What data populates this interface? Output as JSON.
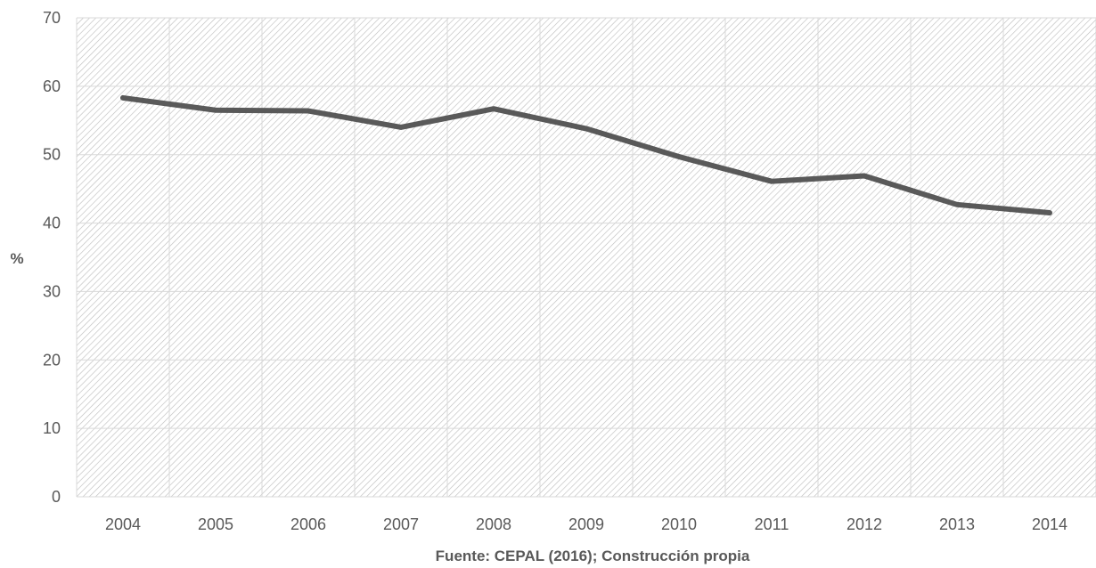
{
  "chart_data": {
    "type": "line",
    "title": "",
    "xlabel": "Fuente: CEPAL (2016); Construcción propia",
    "ylabel": "%",
    "categories": [
      "2004",
      "2005",
      "2006",
      "2007",
      "2008",
      "2009",
      "2010",
      "2011",
      "2012",
      "2013",
      "2014"
    ],
    "series": [
      {
        "values": [
          58.3,
          56.5,
          56.4,
          54.0,
          56.7,
          53.8,
          49.7,
          46.1,
          46.9,
          42.7,
          41.5
        ],
        "color": "#595959"
      }
    ],
    "ylim": [
      0,
      70
    ],
    "yticks": [
      0,
      10,
      20,
      30,
      40,
      50,
      60,
      70
    ],
    "grid": true,
    "legend": "none",
    "plot_background": "hatched-light-gray"
  }
}
